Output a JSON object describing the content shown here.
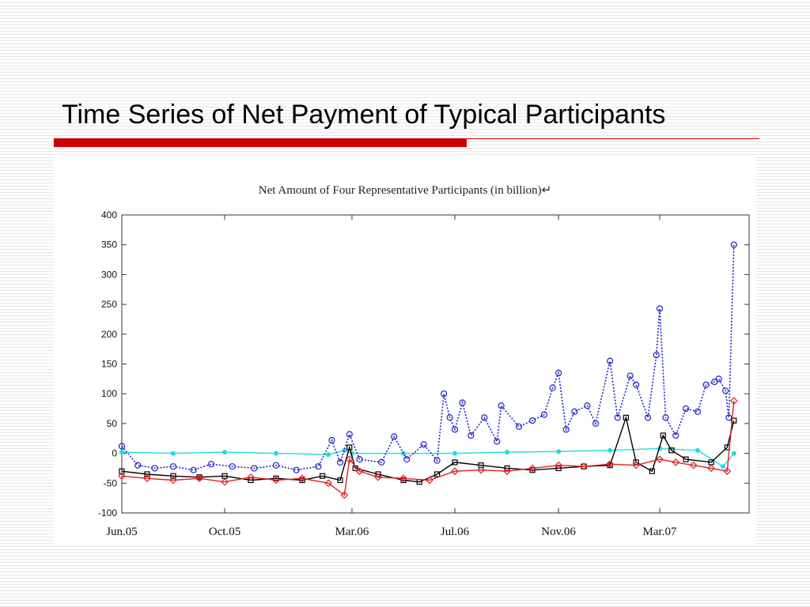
{
  "slide": {
    "title": "Time Series of Net Payment of Typical Participants"
  },
  "colors": {
    "accent_bar": "#cc0000",
    "series": [
      "#2020cc",
      "#000000",
      "#e02020",
      "#20dddd"
    ]
  },
  "chart_data": {
    "type": "line",
    "title": "Net Amount of Four Representative Participants (in billion)↵",
    "xlabel": "",
    "ylabel": "",
    "ylim": [
      -100,
      400
    ],
    "yticks": [
      -100,
      -50,
      0,
      50,
      100,
      150,
      200,
      250,
      300,
      350,
      400
    ],
    "xlim": [
      "2005-06-01",
      "2007-06-15"
    ],
    "xticks": [
      {
        "date": "2005-06-01",
        "label": "Jun.05"
      },
      {
        "date": "2005-10-01",
        "label": "Oct.05"
      },
      {
        "date": "2006-03-01",
        "label": "Mar.06"
      },
      {
        "date": "2006-07-01",
        "label": "Jul.06"
      },
      {
        "date": "2006-11-01",
        "label": "Nov.06"
      },
      {
        "date": "2007-03-01",
        "label": "Mar.07"
      }
    ],
    "grid": false,
    "legend": "none",
    "series": [
      {
        "color": "#2020cc",
        "marker": "circle",
        "line": "dotted",
        "points": [
          [
            "2005-06-01",
            12
          ],
          [
            "2005-06-20",
            -20
          ],
          [
            "2005-07-10",
            -25
          ],
          [
            "2005-08-01",
            -22
          ],
          [
            "2005-08-25",
            -28
          ],
          [
            "2005-09-15",
            -18
          ],
          [
            "2005-10-10",
            -22
          ],
          [
            "2005-11-05",
            -25
          ],
          [
            "2005-12-01",
            -20
          ],
          [
            "2005-12-25",
            -28
          ],
          [
            "2006-01-20",
            -22
          ],
          [
            "2006-02-05",
            22
          ],
          [
            "2006-02-15",
            -15
          ],
          [
            "2006-02-26",
            32
          ],
          [
            "2006-03-10",
            -10
          ],
          [
            "2006-04-05",
            -15
          ],
          [
            "2006-04-20",
            28
          ],
          [
            "2006-05-05",
            -10
          ],
          [
            "2006-05-25",
            15
          ],
          [
            "2006-06-10",
            -12
          ],
          [
            "2006-06-18",
            100
          ],
          [
            "2006-06-25",
            60
          ],
          [
            "2006-07-01",
            40
          ],
          [
            "2006-07-10",
            85
          ],
          [
            "2006-07-20",
            30
          ],
          [
            "2006-08-05",
            60
          ],
          [
            "2006-08-20",
            20
          ],
          [
            "2006-08-25",
            80
          ],
          [
            "2006-09-15",
            45
          ],
          [
            "2006-10-01",
            55
          ],
          [
            "2006-10-15",
            65
          ],
          [
            "2006-10-25",
            110
          ],
          [
            "2006-11-01",
            135
          ],
          [
            "2006-11-10",
            40
          ],
          [
            "2006-11-20",
            70
          ],
          [
            "2006-12-05",
            80
          ],
          [
            "2006-12-15",
            50
          ],
          [
            "2007-01-01",
            155
          ],
          [
            "2007-01-10",
            60
          ],
          [
            "2007-01-25",
            130
          ],
          [
            "2007-02-01",
            115
          ],
          [
            "2007-02-15",
            60
          ],
          [
            "2007-02-25",
            165
          ],
          [
            "2007-03-01",
            243
          ],
          [
            "2007-03-08",
            60
          ],
          [
            "2007-03-20",
            30
          ],
          [
            "2007-04-01",
            75
          ],
          [
            "2007-04-15",
            70
          ],
          [
            "2007-04-25",
            115
          ],
          [
            "2007-05-05",
            120
          ],
          [
            "2007-05-10",
            125
          ],
          [
            "2007-05-18",
            105
          ],
          [
            "2007-05-22",
            60
          ],
          [
            "2007-05-28",
            350
          ]
        ]
      },
      {
        "color": "#000000",
        "marker": "square",
        "line": "solid",
        "points": [
          [
            "2005-06-01",
            -30
          ],
          [
            "2005-07-01",
            -35
          ],
          [
            "2005-08-01",
            -38
          ],
          [
            "2005-09-01",
            -40
          ],
          [
            "2005-10-01",
            -38
          ],
          [
            "2005-11-01",
            -45
          ],
          [
            "2005-12-01",
            -42
          ],
          [
            "2006-01-01",
            -45
          ],
          [
            "2006-01-25",
            -38
          ],
          [
            "2006-02-15",
            -45
          ],
          [
            "2006-02-26",
            10
          ],
          [
            "2006-03-05",
            -25
          ],
          [
            "2006-04-01",
            -35
          ],
          [
            "2006-05-01",
            -45
          ],
          [
            "2006-05-20",
            -48
          ],
          [
            "2006-06-10",
            -35
          ],
          [
            "2006-07-01",
            -15
          ],
          [
            "2006-08-01",
            -20
          ],
          [
            "2006-09-01",
            -25
          ],
          [
            "2006-10-01",
            -28
          ],
          [
            "2006-11-01",
            -25
          ],
          [
            "2006-12-01",
            -22
          ],
          [
            "2007-01-01",
            -20
          ],
          [
            "2007-01-20",
            60
          ],
          [
            "2007-02-01",
            -15
          ],
          [
            "2007-02-20",
            -30
          ],
          [
            "2007-03-05",
            30
          ],
          [
            "2007-03-15",
            5
          ],
          [
            "2007-04-01",
            -10
          ],
          [
            "2007-05-01",
            -15
          ],
          [
            "2007-05-20",
            10
          ],
          [
            "2007-05-28",
            55
          ]
        ]
      },
      {
        "color": "#e02020",
        "marker": "diamond",
        "line": "solid",
        "points": [
          [
            "2005-06-01",
            -38
          ],
          [
            "2005-07-01",
            -42
          ],
          [
            "2005-08-01",
            -45
          ],
          [
            "2005-09-01",
            -42
          ],
          [
            "2005-10-01",
            -48
          ],
          [
            "2005-11-01",
            -40
          ],
          [
            "2005-12-01",
            -45
          ],
          [
            "2006-01-01",
            -42
          ],
          [
            "2006-02-01",
            -50
          ],
          [
            "2006-02-20",
            -70
          ],
          [
            "2006-02-26",
            -10
          ],
          [
            "2006-03-10",
            -30
          ],
          [
            "2006-04-01",
            -40
          ],
          [
            "2006-05-01",
            -42
          ],
          [
            "2006-06-01",
            -45
          ],
          [
            "2006-07-01",
            -30
          ],
          [
            "2006-08-01",
            -28
          ],
          [
            "2006-09-01",
            -30
          ],
          [
            "2006-10-01",
            -25
          ],
          [
            "2006-11-01",
            -20
          ],
          [
            "2006-12-01",
            -22
          ],
          [
            "2007-01-01",
            -18
          ],
          [
            "2007-02-01",
            -20
          ],
          [
            "2007-03-01",
            -10
          ],
          [
            "2007-03-20",
            -15
          ],
          [
            "2007-04-10",
            -20
          ],
          [
            "2007-05-01",
            -25
          ],
          [
            "2007-05-20",
            -30
          ],
          [
            "2007-05-28",
            88
          ]
        ]
      },
      {
        "color": "#20dddd",
        "marker": "star",
        "line": "solid",
        "points": [
          [
            "2005-06-01",
            2
          ],
          [
            "2005-08-01",
            0
          ],
          [
            "2005-10-01",
            2
          ],
          [
            "2005-12-01",
            0
          ],
          [
            "2006-02-01",
            -2
          ],
          [
            "2006-02-20",
            5
          ],
          [
            "2006-03-01",
            0
          ],
          [
            "2006-05-01",
            0
          ],
          [
            "2006-07-01",
            0
          ],
          [
            "2006-09-01",
            2
          ],
          [
            "2006-11-01",
            3
          ],
          [
            "2007-01-01",
            5
          ],
          [
            "2007-03-01",
            8
          ],
          [
            "2007-04-15",
            5
          ],
          [
            "2007-05-15",
            -22
          ],
          [
            "2007-05-28",
            0
          ]
        ]
      }
    ]
  }
}
